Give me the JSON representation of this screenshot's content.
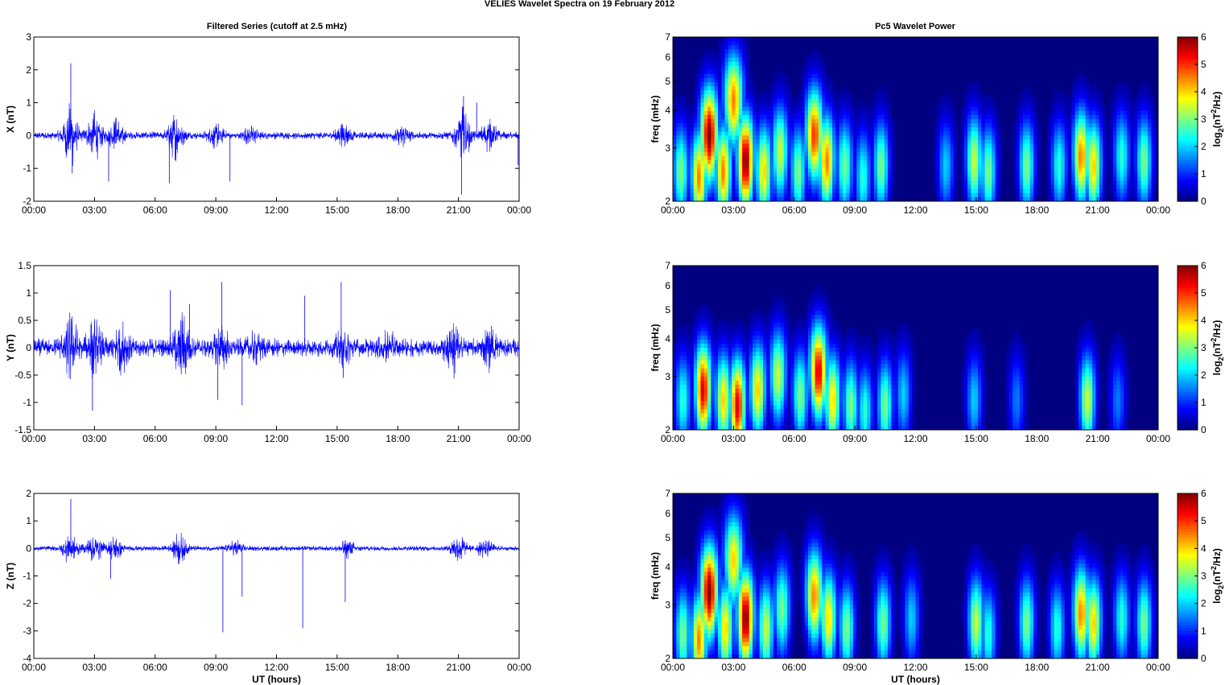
{
  "figure": {
    "title": "VELIES Wavelet Spectra on 19 February  2012",
    "left_title": "Filtered Series (cutoff at 2.5 mHz)",
    "right_title": "Pc5 Wavelet Power"
  },
  "chart_data": [
    {
      "type": "line",
      "title": "Filtered Series (cutoff at 2.5 mHz)",
      "xlabel": "",
      "ylabel": "X (nT)",
      "xlim": [
        0,
        24
      ],
      "x_ticks": [
        "00:00",
        "03:00",
        "06:00",
        "09:00",
        "12:00",
        "15:00",
        "18:00",
        "21:00",
        "00:00"
      ],
      "ylim": [
        -2,
        3
      ],
      "y_ticks": [
        "-2",
        "-1",
        "0",
        "1",
        "2",
        "3"
      ],
      "color": "#0000ff",
      "bursts": [
        {
          "t": 1.8,
          "amp": 1.0
        },
        {
          "t": 3.0,
          "amp": 0.75
        },
        {
          "t": 4.1,
          "amp": 0.55
        },
        {
          "t": 7.0,
          "amp": 0.75
        },
        {
          "t": 9.0,
          "amp": 0.35
        },
        {
          "t": 10.7,
          "amp": 0.25
        },
        {
          "t": 15.3,
          "amp": 0.35
        },
        {
          "t": 18.2,
          "amp": 0.3
        },
        {
          "t": 21.2,
          "amp": 0.9
        },
        {
          "t": 22.5,
          "amp": 0.5
        }
      ],
      "spikes": [
        {
          "t": 1.83,
          "v": 2.2
        },
        {
          "t": 1.9,
          "v": -1.15
        },
        {
          "t": 3.7,
          "v": -1.4
        },
        {
          "t": 6.7,
          "v": -1.45
        },
        {
          "t": 9.7,
          "v": -1.4
        },
        {
          "t": 21.15,
          "v": -1.8
        },
        {
          "t": 21.25,
          "v": 1.2
        },
        {
          "t": 21.9,
          "v": 1.0
        },
        {
          "t": 23.95,
          "v": -0.9
        }
      ],
      "noise": 0.12
    },
    {
      "type": "line",
      "title": "",
      "xlabel": "",
      "ylabel": "Y (nT)",
      "xlim": [
        0,
        24
      ],
      "x_ticks": [
        "00:00",
        "03:00",
        "06:00",
        "09:00",
        "12:00",
        "15:00",
        "18:00",
        "21:00",
        "00:00"
      ],
      "ylim": [
        -1.5,
        1.5
      ],
      "y_ticks": [
        "-1.5",
        "-1",
        "-0.5",
        "0",
        "0.5",
        "1",
        "1.5"
      ],
      "color": "#0000ff",
      "bursts": [
        {
          "t": 1.8,
          "amp": 0.55
        },
        {
          "t": 3.0,
          "amp": 0.5
        },
        {
          "t": 4.3,
          "amp": 0.45
        },
        {
          "t": 7.3,
          "amp": 0.55
        },
        {
          "t": 9.3,
          "amp": 0.3
        },
        {
          "t": 11.0,
          "amp": 0.2
        },
        {
          "t": 15.3,
          "amp": 0.25
        },
        {
          "t": 17.5,
          "amp": 0.2
        },
        {
          "t": 20.7,
          "amp": 0.45
        },
        {
          "t": 22.5,
          "amp": 0.3
        }
      ],
      "spikes": [
        {
          "t": 2.9,
          "v": -1.15
        },
        {
          "t": 6.75,
          "v": 1.05
        },
        {
          "t": 7.7,
          "v": 0.8
        },
        {
          "t": 9.3,
          "v": 1.2
        },
        {
          "t": 9.1,
          "v": -0.95
        },
        {
          "t": 10.3,
          "v": -1.05
        },
        {
          "t": 13.4,
          "v": 0.95
        },
        {
          "t": 15.2,
          "v": 1.2
        },
        {
          "t": 15.3,
          "v": -0.55
        }
      ],
      "noise": 0.18
    },
    {
      "type": "line",
      "title": "",
      "xlabel": "UT (hours)",
      "ylabel": "Z (nT)",
      "xlim": [
        0,
        24
      ],
      "x_ticks": [
        "00:00",
        "03:00",
        "06:00",
        "09:00",
        "12:00",
        "15:00",
        "18:00",
        "21:00",
        "00:00"
      ],
      "ylim": [
        -4,
        2
      ],
      "y_ticks": [
        "-4",
        "-3",
        "-2",
        "-1",
        "0",
        "1",
        "2"
      ],
      "color": "#0000ff",
      "bursts": [
        {
          "t": 1.8,
          "amp": 0.6
        },
        {
          "t": 3.0,
          "amp": 0.6
        },
        {
          "t": 4.0,
          "amp": 0.45
        },
        {
          "t": 7.2,
          "amp": 0.55
        },
        {
          "t": 10.0,
          "amp": 0.3
        },
        {
          "t": 15.5,
          "amp": 0.3
        },
        {
          "t": 21.0,
          "amp": 0.5
        },
        {
          "t": 22.3,
          "amp": 0.35
        }
      ],
      "spikes": [
        {
          "t": 1.83,
          "v": 1.8
        },
        {
          "t": 9.35,
          "v": -3.05
        },
        {
          "t": 10.3,
          "v": -1.75
        },
        {
          "t": 13.3,
          "v": -2.9
        },
        {
          "t": 15.4,
          "v": -1.95
        },
        {
          "t": 3.8,
          "v": -1.1
        }
      ],
      "noise": 0.1
    },
    {
      "type": "heatmap",
      "title": "Pc5 Wavelet Power",
      "xlabel": "",
      "ylabel": "freq (mHz)",
      "xlim": [
        0,
        24
      ],
      "x_ticks": [
        "00:00",
        "03:00",
        "06:00",
        "09:00",
        "12:00",
        "15:00",
        "18:00",
        "21:00",
        "00:00"
      ],
      "ylim": [
        2,
        7
      ],
      "y_scale": "log",
      "y_ticks": [
        "2",
        "3",
        "4",
        "5",
        "6",
        "7"
      ],
      "colorbar": {
        "label": "log2(nT2/Hz)",
        "range": [
          0,
          6
        ],
        "ticks": [
          "0",
          "1",
          "2",
          "3",
          "4",
          "5",
          "6"
        ],
        "colormap": "jet"
      },
      "blobs": [
        {
          "t": 0.4,
          "f": 2.5,
          "p": 3.0
        },
        {
          "t": 1.3,
          "f": 2.4,
          "p": 4.5
        },
        {
          "t": 1.8,
          "f": 3.3,
          "p": 6.0
        },
        {
          "t": 2.5,
          "f": 2.5,
          "p": 4.5
        },
        {
          "t": 3.0,
          "f": 4.3,
          "p": 4.5
        },
        {
          "t": 3.6,
          "f": 2.7,
          "p": 6.0
        },
        {
          "t": 4.5,
          "f": 2.5,
          "p": 4.0
        },
        {
          "t": 5.3,
          "f": 2.9,
          "p": 3.5
        },
        {
          "t": 6.2,
          "f": 2.5,
          "p": 3.0
        },
        {
          "t": 7.0,
          "f": 3.3,
          "p": 5.0
        },
        {
          "t": 7.6,
          "f": 2.7,
          "p": 4.5
        },
        {
          "t": 8.5,
          "f": 2.6,
          "p": 3.0
        },
        {
          "t": 9.4,
          "f": 2.4,
          "p": 2.5
        },
        {
          "t": 10.3,
          "f": 2.6,
          "p": 3.0
        },
        {
          "t": 13.5,
          "f": 2.6,
          "p": 2.0
        },
        {
          "t": 14.9,
          "f": 2.7,
          "p": 3.5
        },
        {
          "t": 15.6,
          "f": 2.5,
          "p": 3.0
        },
        {
          "t": 17.5,
          "f": 2.6,
          "p": 3.0
        },
        {
          "t": 19.1,
          "f": 2.6,
          "p": 2.5
        },
        {
          "t": 20.2,
          "f": 2.8,
          "p": 4.5
        },
        {
          "t": 20.8,
          "f": 2.6,
          "p": 4.0
        },
        {
          "t": 22.2,
          "f": 2.8,
          "p": 2.5
        },
        {
          "t": 23.3,
          "f": 2.7,
          "p": 3.0
        }
      ]
    },
    {
      "type": "heatmap",
      "title": "",
      "xlabel": "",
      "ylabel": "freq (mHz)",
      "xlim": [
        0,
        24
      ],
      "x_ticks": [
        "00:00",
        "03:00",
        "06:00",
        "09:00",
        "12:00",
        "15:00",
        "18:00",
        "21:00",
        "00:00"
      ],
      "ylim": [
        2,
        7
      ],
      "y_scale": "log",
      "y_ticks": [
        "2",
        "3",
        "4",
        "5",
        "6",
        "7"
      ],
      "colorbar": {
        "label": "log2(nT2/Hz)",
        "range": [
          0,
          6
        ],
        "ticks": [
          "0",
          "1",
          "2",
          "3",
          "4",
          "5",
          "6"
        ],
        "colormap": "jet"
      },
      "blobs": [
        {
          "t": 0.5,
          "f": 2.5,
          "p": 2.5
        },
        {
          "t": 1.5,
          "f": 2.7,
          "p": 5.5
        },
        {
          "t": 2.5,
          "f": 2.5,
          "p": 4.0
        },
        {
          "t": 3.2,
          "f": 2.4,
          "p": 5.5
        },
        {
          "t": 4.2,
          "f": 2.7,
          "p": 4.0
        },
        {
          "t": 5.2,
          "f": 3.0,
          "p": 3.5
        },
        {
          "t": 6.3,
          "f": 2.6,
          "p": 3.0
        },
        {
          "t": 7.2,
          "f": 3.1,
          "p": 5.5
        },
        {
          "t": 7.9,
          "f": 2.5,
          "p": 4.0
        },
        {
          "t": 8.8,
          "f": 2.4,
          "p": 3.0
        },
        {
          "t": 9.5,
          "f": 2.3,
          "p": 2.5
        },
        {
          "t": 10.5,
          "f": 2.4,
          "p": 3.0
        },
        {
          "t": 11.4,
          "f": 2.6,
          "p": 2.0
        },
        {
          "t": 14.9,
          "f": 2.5,
          "p": 2.0
        },
        {
          "t": 17.0,
          "f": 2.5,
          "p": 1.5
        },
        {
          "t": 20.5,
          "f": 2.5,
          "p": 3.5
        },
        {
          "t": 22.0,
          "f": 2.5,
          "p": 1.5
        }
      ]
    },
    {
      "type": "heatmap",
      "title": "",
      "xlabel": "UT (hours)",
      "ylabel": "freq (mHz)",
      "xlim": [
        0,
        24
      ],
      "x_ticks": [
        "00:00",
        "03:00",
        "06:00",
        "09:00",
        "12:00",
        "15:00",
        "18:00",
        "21:00",
        "00:00"
      ],
      "ylim": [
        2,
        7
      ],
      "y_scale": "log",
      "y_ticks": [
        "2",
        "3",
        "4",
        "5",
        "6",
        "7"
      ],
      "colorbar": {
        "label": "log2(nT2/Hz)",
        "range": [
          0,
          6
        ],
        "ticks": [
          "0",
          "1",
          "2",
          "3",
          "4",
          "5",
          "6"
        ],
        "colormap": "jet"
      },
      "blobs": [
        {
          "t": 0.5,
          "f": 2.4,
          "p": 3.0
        },
        {
          "t": 1.3,
          "f": 2.3,
          "p": 4.5
        },
        {
          "t": 1.8,
          "f": 3.3,
          "p": 6.0
        },
        {
          "t": 2.6,
          "f": 2.5,
          "p": 4.0
        },
        {
          "t": 3.0,
          "f": 4.2,
          "p": 4.0
        },
        {
          "t": 3.6,
          "f": 2.7,
          "p": 6.0
        },
        {
          "t": 4.6,
          "f": 2.5,
          "p": 3.5
        },
        {
          "t": 5.4,
          "f": 2.9,
          "p": 3.0
        },
        {
          "t": 7.0,
          "f": 3.2,
          "p": 4.5
        },
        {
          "t": 7.7,
          "f": 2.7,
          "p": 4.0
        },
        {
          "t": 8.6,
          "f": 2.5,
          "p": 3.0
        },
        {
          "t": 10.4,
          "f": 2.6,
          "p": 3.0
        },
        {
          "t": 11.8,
          "f": 2.7,
          "p": 2.0
        },
        {
          "t": 15.0,
          "f": 2.6,
          "p": 3.5
        },
        {
          "t": 15.6,
          "f": 2.4,
          "p": 2.5
        },
        {
          "t": 17.5,
          "f": 2.6,
          "p": 3.0
        },
        {
          "t": 19.0,
          "f": 2.5,
          "p": 2.5
        },
        {
          "t": 20.2,
          "f": 2.8,
          "p": 4.5
        },
        {
          "t": 20.8,
          "f": 2.6,
          "p": 4.0
        },
        {
          "t": 22.2,
          "f": 2.7,
          "p": 2.5
        },
        {
          "t": 23.3,
          "f": 2.6,
          "p": 3.0
        }
      ]
    }
  ]
}
